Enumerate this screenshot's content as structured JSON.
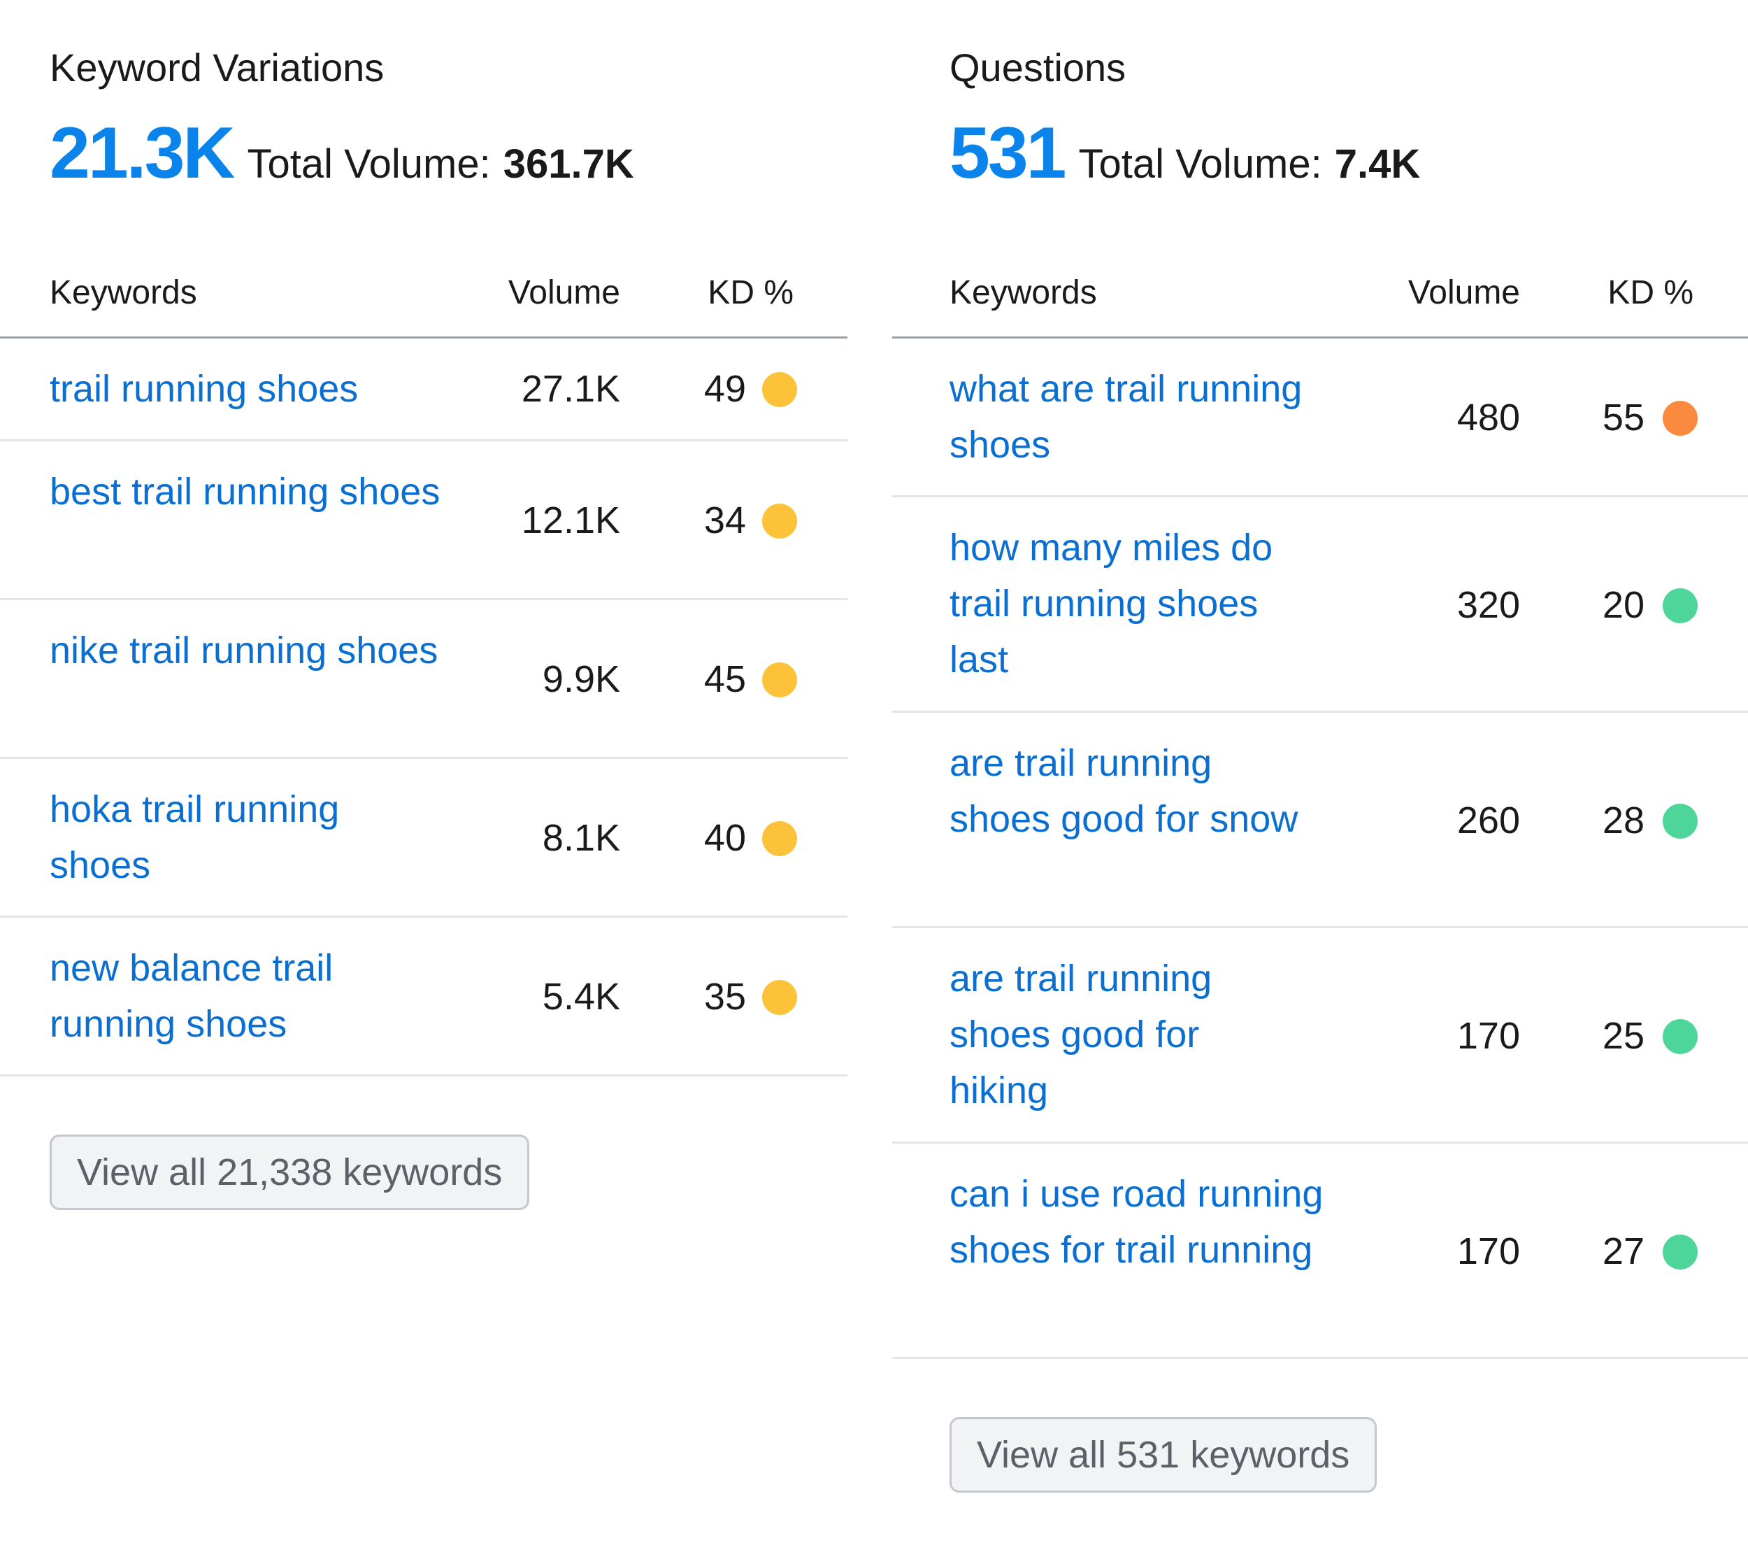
{
  "colors": {
    "accent": "#0a84ea",
    "link": "#0a6fd0",
    "kd_yellow": "#fcc33a",
    "kd_orange": "#f98a3e",
    "kd_green": "#4ed69a"
  },
  "variations": {
    "title": "Keyword Variations",
    "count": "21.3K",
    "total_label": "Total Volume:",
    "total_value": "361.7K",
    "headers": {
      "keywords": "Keywords",
      "volume": "Volume",
      "kd": "KD %"
    },
    "rows": [
      {
        "keyword": "trail running shoes",
        "volume": "27.1K",
        "kd": "49",
        "kd_color": "#fcc33a"
      },
      {
        "keyword": "best trail running shoes",
        "volume": "12.1K",
        "kd": "34",
        "kd_color": "#fcc33a"
      },
      {
        "keyword": "nike trail running shoes",
        "volume": "9.9K",
        "kd": "45",
        "kd_color": "#fcc33a"
      },
      {
        "keyword": "hoka trail running shoes",
        "volume": "8.1K",
        "kd": "40",
        "kd_color": "#fcc33a"
      },
      {
        "keyword": "new balance trail running shoes",
        "volume": "5.4K",
        "kd": "35",
        "kd_color": "#fcc33a"
      }
    ],
    "view_all_label": "View all 21,338 keywords"
  },
  "questions": {
    "title": "Questions",
    "count": "531",
    "total_label": "Total Volume:",
    "total_value": "7.4K",
    "headers": {
      "keywords": "Keywords",
      "volume": "Volume",
      "kd": "KD %"
    },
    "rows": [
      {
        "keyword": "what are trail running shoes",
        "volume": "480",
        "kd": "55",
        "kd_color": "#f98a3e"
      },
      {
        "keyword": "how many miles do trail running shoes last",
        "volume": "320",
        "kd": "20",
        "kd_color": "#4ed69a"
      },
      {
        "keyword": "are trail running shoes good for snow",
        "volume": "260",
        "kd": "28",
        "kd_color": "#4ed69a"
      },
      {
        "keyword": "are trail running shoes good for hiking",
        "volume": "170",
        "kd": "25",
        "kd_color": "#4ed69a"
      },
      {
        "keyword": "can i use road running shoes for trail running",
        "volume": "170",
        "kd": "27",
        "kd_color": "#4ed69a"
      }
    ],
    "view_all_label": "View all 531 keywords"
  }
}
